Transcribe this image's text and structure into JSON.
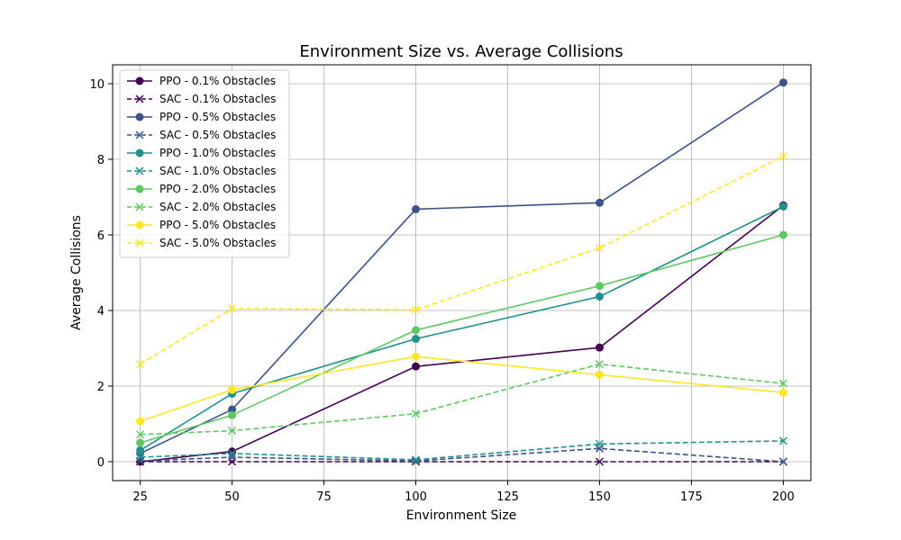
{
  "chart_data": {
    "type": "line",
    "title": "Environment Size vs. Average Collisions",
    "xlabel": "Environment Size",
    "ylabel": "Average Collisions",
    "x": [
      25,
      50,
      100,
      150,
      200
    ],
    "xlim": [
      17.5,
      207.5
    ],
    "ylim": [
      -0.5,
      10.5
    ],
    "xticks": [
      25,
      50,
      75,
      100,
      125,
      150,
      175,
      200
    ],
    "yticks": [
      0,
      2,
      4,
      6,
      8,
      10
    ],
    "grid": true,
    "legend_position": "top-left",
    "series": [
      {
        "name": "PPO - 0.1% Obstacles",
        "color": "#440154",
        "style": "solid",
        "marker": "circle",
        "values": [
          0.0,
          0.27,
          2.52,
          3.02,
          6.78
        ]
      },
      {
        "name": "SAC - 0.1% Obstacles",
        "color": "#440154",
        "style": "dashed",
        "marker": "x",
        "values": [
          0.0,
          0.0,
          0.0,
          0.0,
          0.0
        ]
      },
      {
        "name": "PPO - 0.5% Obstacles",
        "color": "#3b528b",
        "style": "solid",
        "marker": "circle",
        "values": [
          0.22,
          1.38,
          6.68,
          6.85,
          10.03
        ]
      },
      {
        "name": "SAC - 0.5% Obstacles",
        "color": "#3b528b",
        "style": "dashed",
        "marker": "x",
        "values": [
          0.02,
          0.12,
          0.02,
          0.35,
          0.0
        ]
      },
      {
        "name": "PPO - 1.0% Obstacles",
        "color": "#21918c",
        "style": "solid",
        "marker": "circle",
        "values": [
          0.3,
          1.8,
          3.25,
          4.37,
          6.75
        ]
      },
      {
        "name": "SAC - 1.0% Obstacles",
        "color": "#21918c",
        "style": "dashed",
        "marker": "x",
        "values": [
          0.12,
          0.22,
          0.05,
          0.47,
          0.55
        ]
      },
      {
        "name": "PPO - 2.0% Obstacles",
        "color": "#5ec962",
        "style": "solid",
        "marker": "circle",
        "values": [
          0.5,
          1.23,
          3.48,
          4.65,
          6.0
        ]
      },
      {
        "name": "SAC - 2.0% Obstacles",
        "color": "#5ec962",
        "style": "dashed",
        "marker": "x",
        "values": [
          0.72,
          0.82,
          1.27,
          2.58,
          2.07
        ]
      },
      {
        "name": "PPO - 5.0% Obstacles",
        "color": "#fde725",
        "style": "solid",
        "marker": "circle",
        "values": [
          1.07,
          1.9,
          2.78,
          2.3,
          1.83
        ]
      },
      {
        "name": "SAC - 5.0% Obstacles",
        "color": "#fde725",
        "style": "dashed",
        "marker": "x",
        "values": [
          2.58,
          4.05,
          4.02,
          5.65,
          8.08
        ]
      }
    ]
  }
}
